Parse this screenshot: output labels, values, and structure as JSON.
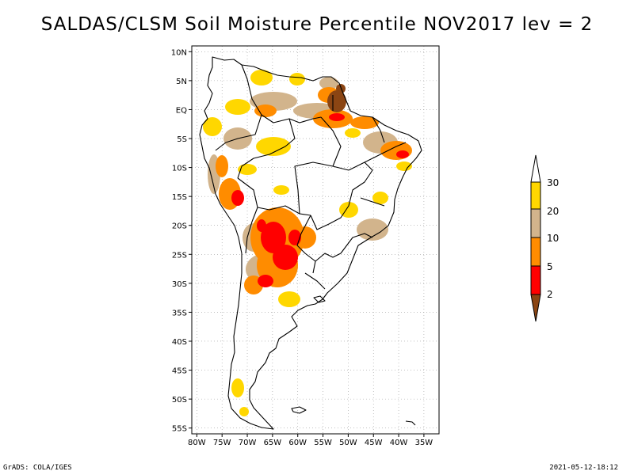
{
  "title": "SALDAS/CLSM Soil Moisture Percentile NOV2017 lev = 2",
  "lat_labels": [
    "10N",
    "5N",
    "EQ",
    "5S",
    "10S",
    "15S",
    "20S",
    "25S",
    "30S",
    "35S",
    "40S",
    "45S",
    "50S",
    "55S"
  ],
  "lat_values": [
    10,
    5,
    0,
    -5,
    -10,
    -15,
    -20,
    -25,
    -30,
    -35,
    -40,
    -45,
    -50,
    -55
  ],
  "lon_labels": [
    "80W",
    "75W",
    "70W",
    "65W",
    "60W",
    "55W",
    "50W",
    "45W",
    "40W",
    "35W"
  ],
  "lon_values": [
    -80,
    -75,
    -70,
    -65,
    -60,
    -55,
    -50,
    -45,
    -40,
    -35
  ],
  "legend": {
    "labels": [
      "2",
      "5",
      "10",
      "20",
      "30"
    ],
    "colors": {
      "below2": "#8b4513",
      "b2_5": "#ff0000",
      "b5_10": "#ff8c00",
      "b10_20": "#d2b48c",
      "b20_30": "#ffd700",
      "above30": "#ffffff"
    }
  },
  "footer": {
    "left": "GrADS: COLA/IGES",
    "right": "2021-05-12-18:12"
  }
}
